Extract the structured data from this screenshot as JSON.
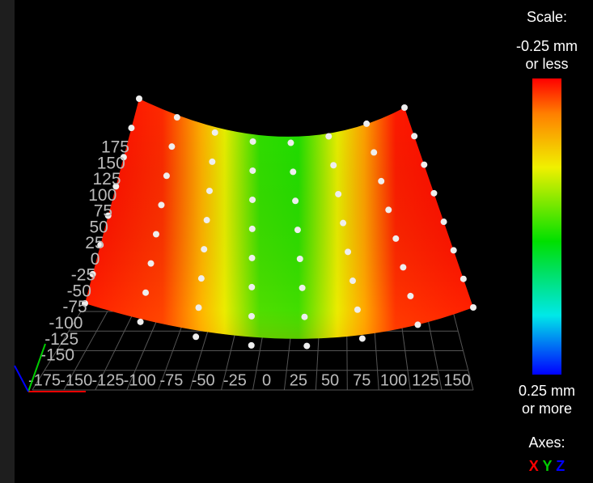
{
  "scale": {
    "title": "Scale:",
    "top_label": [
      "-0.25 mm",
      "or less"
    ],
    "bottom_label": [
      "0.25 mm",
      "or more"
    ]
  },
  "axes": {
    "title": "Axes:",
    "x": "X",
    "y": "Y",
    "z": "Z"
  },
  "y_ticks": [
    "175",
    "150",
    "125",
    "100",
    "75",
    "50",
    "25",
    "0",
    "-25",
    "-50",
    "-75",
    "-100",
    "-125",
    "-150"
  ],
  "x_ticks": [
    "-175",
    "-150",
    "-125",
    "-100",
    "-75",
    "-50",
    "-25",
    "0",
    "25",
    "50",
    "75",
    "100",
    "125",
    "150"
  ]
}
